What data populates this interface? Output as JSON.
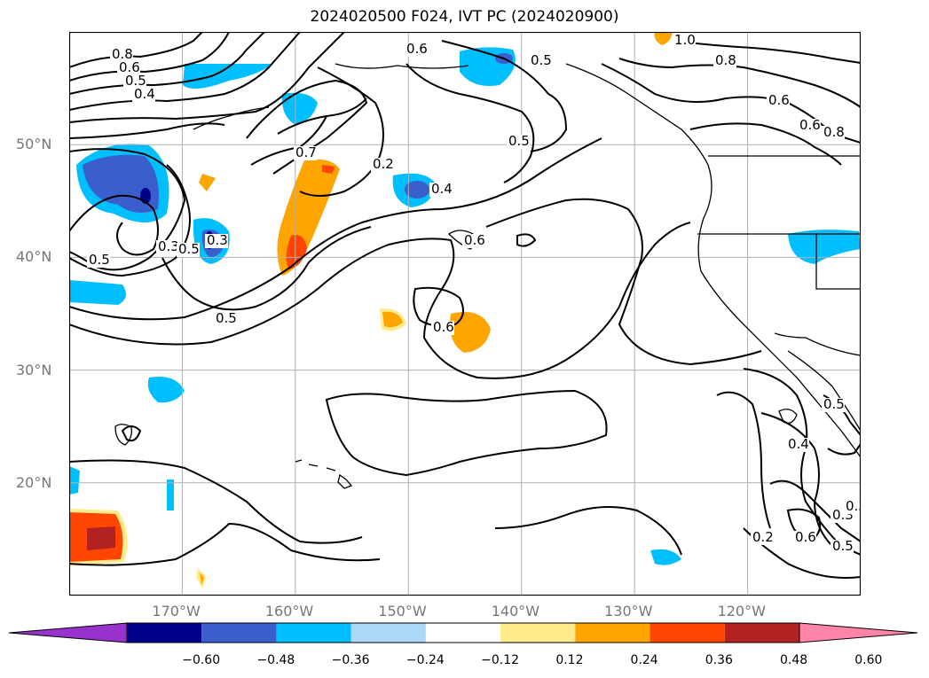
{
  "title": "2024020500 F024, IVT PC (2024020900)",
  "map": {
    "lon_range": [
      -180,
      -110
    ],
    "lat_range": [
      10,
      60
    ],
    "lon_ticks": [
      {
        "lon": -170,
        "label": "170°W"
      },
      {
        "lon": -160,
        "label": "160°W"
      },
      {
        "lon": -150,
        "label": "150°W"
      },
      {
        "lon": -140,
        "label": "140°W"
      },
      {
        "lon": -130,
        "label": "130°W"
      },
      {
        "lon": -120,
        "label": "120°W"
      }
    ],
    "lat_ticks": [
      {
        "lat": 50,
        "label": "50°N"
      },
      {
        "lat": 40,
        "label": "40°N"
      },
      {
        "lat": 30,
        "label": "30°N"
      },
      {
        "lat": 20,
        "label": "20°N"
      }
    ],
    "grid": true,
    "contour_labels": [
      "0.8",
      "0.6",
      "0.5",
      "0.4",
      "0.6",
      "0.5",
      "1.0",
      "0.8",
      "0.6",
      "0.6",
      "0.8",
      "0.7",
      "0.2",
      "0.4",
      "0.5",
      "0.6",
      "0.5",
      "0.3",
      "0.5",
      "0.3",
      "0.5",
      "0.6",
      "0.5",
      "0.4",
      "0.3",
      "0.2",
      "0.6",
      "0.5",
      "0.3"
    ]
  },
  "colorbar": {
    "ticks": [
      "−0.60",
      "−0.48",
      "−0.36",
      "−0.24",
      "−0.12",
      "0.12",
      "0.24",
      "0.36",
      "0.48",
      "0.60"
    ],
    "colors": [
      "#9932cc",
      "#00008b",
      "#3a5fcd",
      "#00bfff",
      "#add8f5",
      "#ffffff",
      "#ffeb8c",
      "#ffa500",
      "#ff4500",
      "#b22222",
      "#ff85a8"
    ]
  },
  "shading": {
    "neg_strong": "#3a5fcd",
    "neg_darkest": "#00008b",
    "neg_mid": "#00bfff",
    "neg_light": "#add8f5",
    "pos_light": "#ffeb8c",
    "pos_mid": "#ffa500",
    "pos_strong": "#ff4500",
    "pos_darker": "#b22222"
  }
}
